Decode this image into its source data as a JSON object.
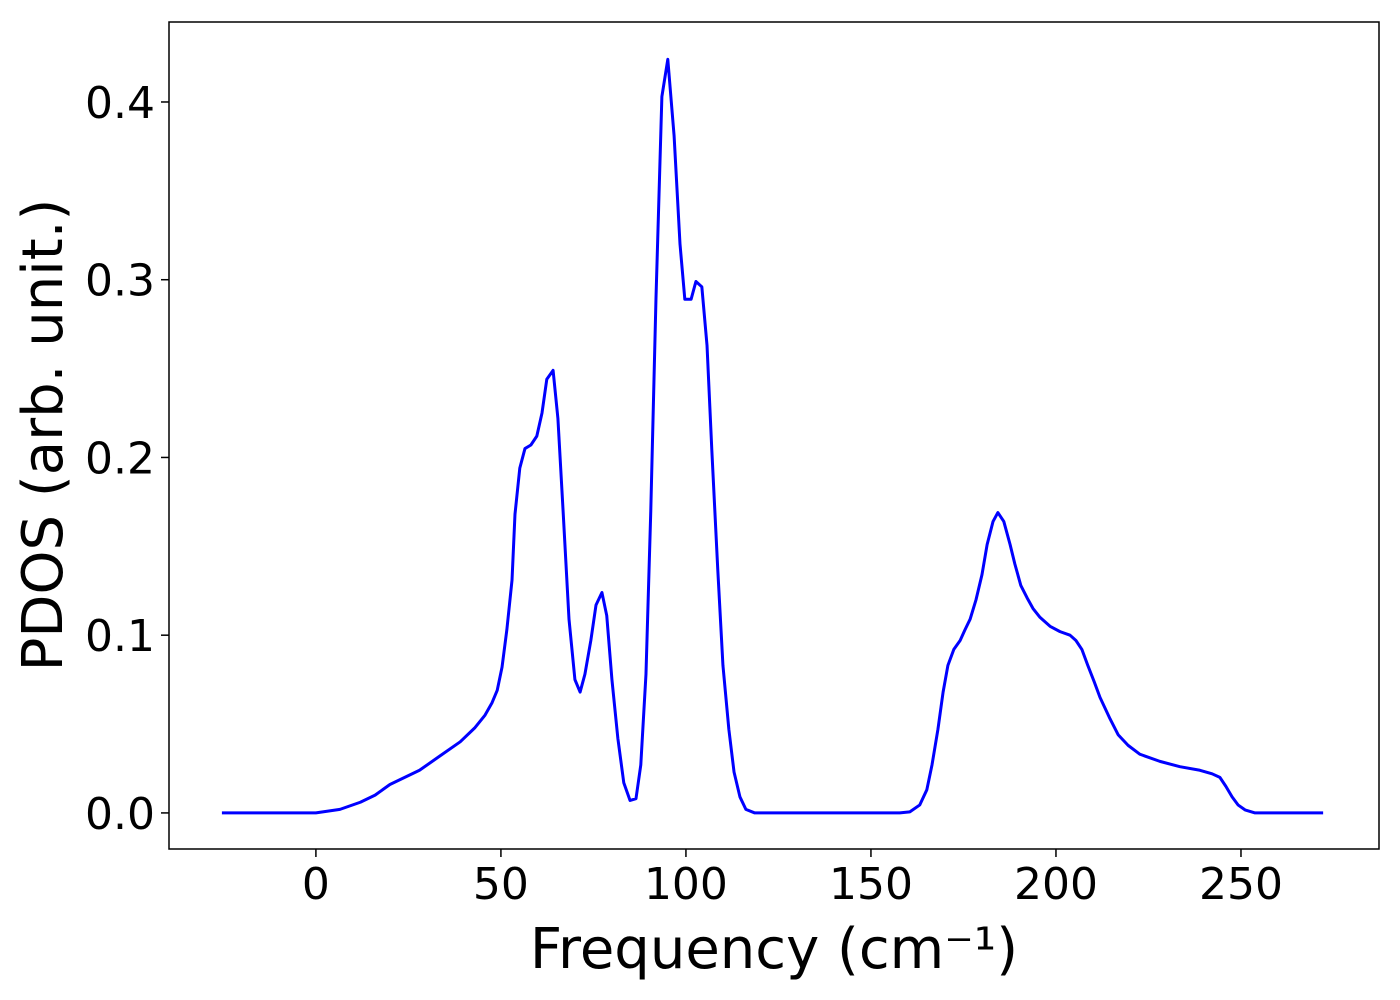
{
  "chart_data": {
    "type": "line",
    "xlabel": "Frequency (cm⁻¹)",
    "ylabel": "PDOS (arb. unit.)",
    "color": "#0000ff",
    "x": [
      -25.4,
      0,
      6.5,
      12,
      16,
      20,
      28,
      33.5,
      39,
      43,
      45.7,
      47.6,
      49,
      50.3,
      51.6,
      53,
      53.8,
      55.1,
      56.5,
      58.1,
      59.7,
      61.1,
      62.4,
      64.1,
      65.4,
      66.8,
      68.4,
      70,
      71.4,
      72.7,
      74.3,
      75.7,
      77.3,
      78.6,
      80,
      81.6,
      83.2,
      84.9,
      86.5,
      87.8,
      89.2,
      90.5,
      91.9,
      93.5,
      95.1,
      96.8,
      98.4,
      99.7,
      101.4,
      102.7,
      104.3,
      105.7,
      107,
      108.6,
      110,
      111.6,
      113,
      114.6,
      116.2,
      118.6,
      157.8,
      160.5,
      163.2,
      165.1,
      166.5,
      168.1,
      169.5,
      170.8,
      172.4,
      174.1,
      175.4,
      176.8,
      178.4,
      180,
      181.4,
      183,
      184.3,
      185.9,
      187.6,
      188.9,
      190.5,
      192.2,
      193.8,
      195.7,
      198.4,
      201.1,
      203.8,
      205.4,
      207,
      208.6,
      210.3,
      211.9,
      214.6,
      216.8,
      219.5,
      222.7,
      228.1,
      233.5,
      238.9,
      242.2,
      244.3,
      245.9,
      247.6,
      249.2,
      251.1,
      253.8,
      272.2
    ],
    "values": [
      0,
      0,
      0.002,
      0.006,
      0.01,
      0.016,
      0.024,
      0.032,
      0.04,
      0.048,
      0.055,
      0.062,
      0.069,
      0.082,
      0.103,
      0.131,
      0.168,
      0.194,
      0.205,
      0.207,
      0.212,
      0.225,
      0.244,
      0.249,
      0.222,
      0.17,
      0.109,
      0.075,
      0.068,
      0.078,
      0.097,
      0.117,
      0.124,
      0.111,
      0.075,
      0.042,
      0.017,
      0.007,
      0.008,
      0.027,
      0.078,
      0.17,
      0.289,
      0.403,
      0.424,
      0.381,
      0.32,
      0.289,
      0.289,
      0.299,
      0.296,
      0.263,
      0.204,
      0.137,
      0.083,
      0.047,
      0.023,
      0.009,
      0.002,
      0,
      0,
      0.0006,
      0.0045,
      0.013,
      0.027,
      0.047,
      0.068,
      0.083,
      0.092,
      0.097,
      0.103,
      0.109,
      0.12,
      0.134,
      0.151,
      0.164,
      0.169,
      0.164,
      0.151,
      0.14,
      0.128,
      0.121,
      0.115,
      0.11,
      0.105,
      0.102,
      0.1,
      0.097,
      0.092,
      0.083,
      0.074,
      0.065,
      0.053,
      0.044,
      0.038,
      0.033,
      0.029,
      0.026,
      0.024,
      0.022,
      0.02,
      0.015,
      0.009,
      0.0045,
      0.0017,
      0,
      0
    ],
    "xlim": [
      -39.7,
      287.3
    ],
    "ylim": [
      -0.0203,
      0.445
    ],
    "xticks": [
      0,
      50,
      100,
      150,
      200,
      250
    ],
    "yticks": [
      {
        "value": 0,
        "label": "0.0"
      },
      0.1,
      0.2,
      0.3,
      0.4
    ],
    "grid": false
  }
}
